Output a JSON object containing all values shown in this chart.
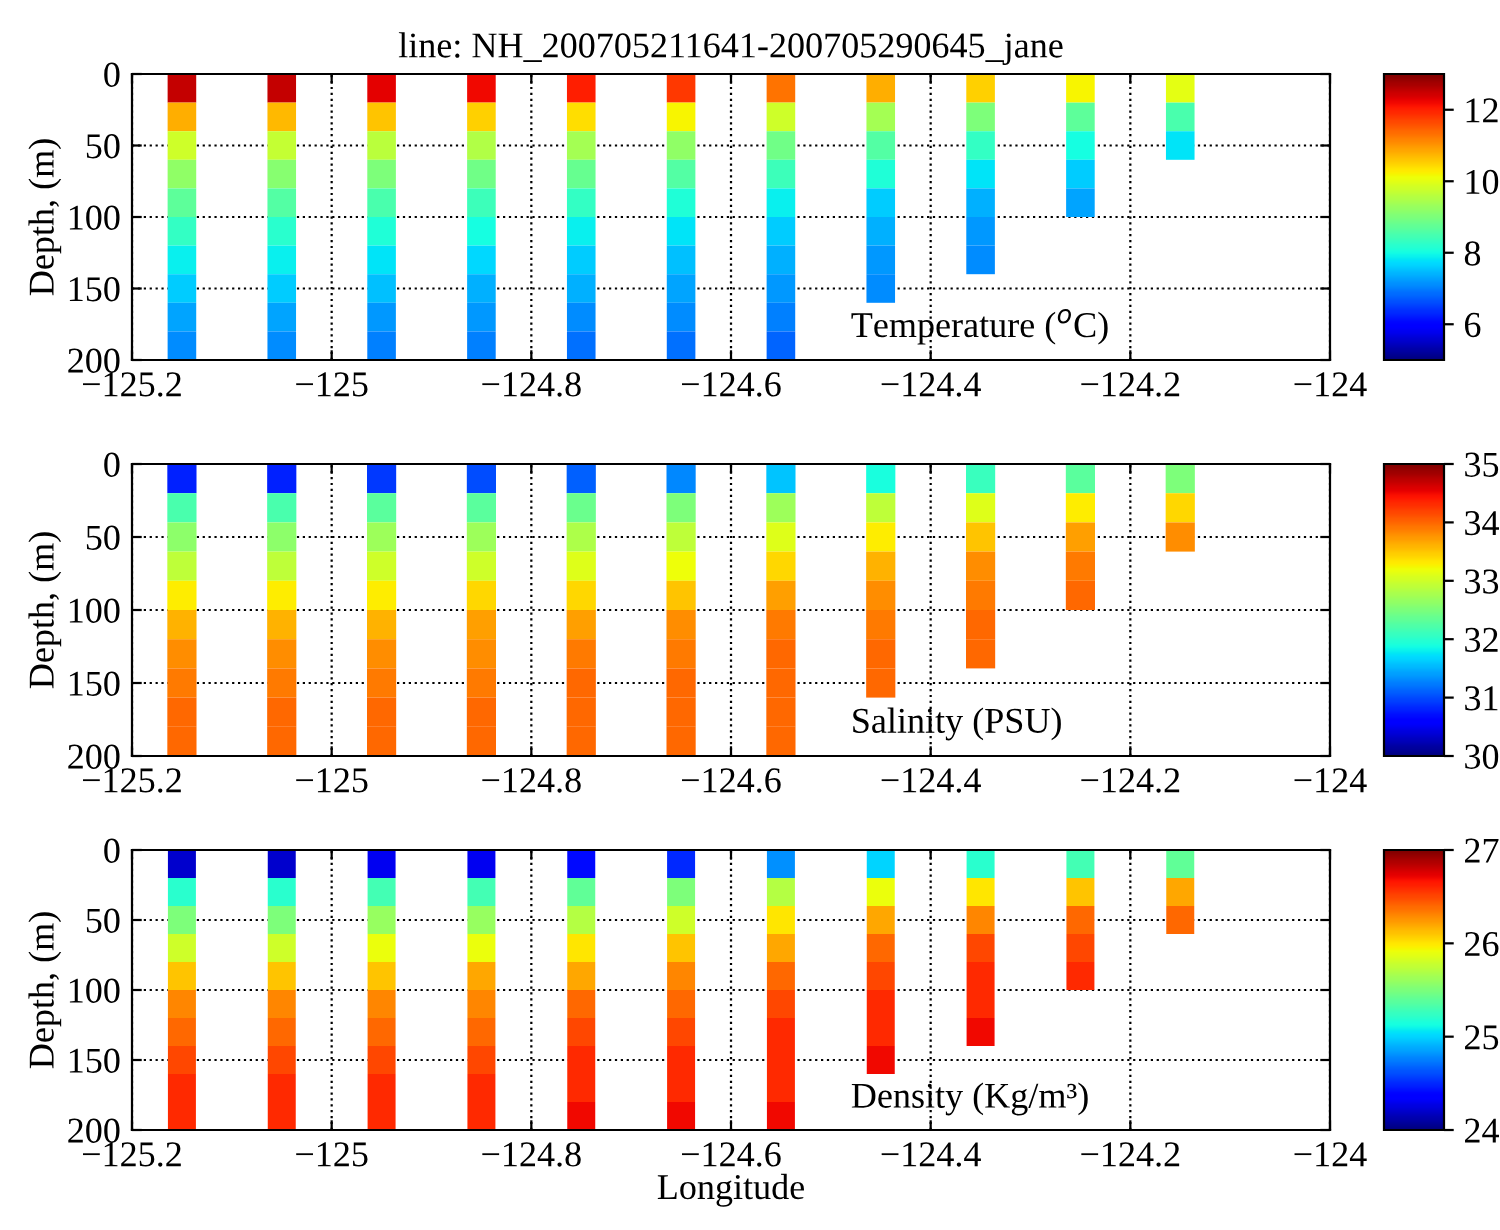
{
  "chart_data": [
    {
      "type": "scatter",
      "title": "line: NH_200705211641-200705290645_jane",
      "ylabel": "Depth, (m)",
      "annotations": [
        "Temperature ($^{o}$C)"
      ],
      "xlim": [
        -125.2,
        -124
      ],
      "xticks": [
        -125.2,
        -125,
        -124.8,
        -124.6,
        -124.4,
        -124.2,
        -124
      ],
      "ylim": [
        200,
        0
      ],
      "yticks": [
        0,
        50,
        100,
        150,
        200
      ],
      "clim": [
        5,
        13
      ],
      "cticks": [
        6,
        8,
        10,
        12
      ],
      "grid": true,
      "marker": "square",
      "x": [
        -125.15,
        -125.05,
        -124.95,
        -124.85,
        -124.75,
        -124.65,
        -124.55,
        -124.45,
        -124.35,
        -124.25,
        -124.15,
        -125.15,
        -125.05,
        -124.95,
        -124.85,
        -124.75,
        -124.65,
        -124.55,
        -124.45,
        -124.35,
        -124.25,
        -124.15,
        -125.15,
        -125.05,
        -124.95,
        -124.85,
        -124.75,
        -124.65,
        -124.55,
        -124.45,
        -124.35,
        -124.25,
        -124.15,
        -125.15,
        -125.05,
        -124.95,
        -124.85,
        -124.75,
        -124.65,
        -124.55,
        -124.45,
        -124.35,
        -124.25,
        -125.15,
        -125.05,
        -124.95,
        -124.85,
        -124.75,
        -124.65,
        -124.55,
        -124.45,
        -124.35,
        -124.25,
        -125.15,
        -125.05,
        -124.95,
        -124.85,
        -124.75,
        -124.65,
        -124.55,
        -124.45,
        -124.35,
        -125.15,
        -125.05,
        -124.95,
        -124.85,
        -124.75,
        -124.65,
        -124.55,
        -124.45,
        -124.35,
        -125.15,
        -125.05,
        -124.95,
        -124.85,
        -124.75,
        -124.65,
        -124.55,
        -124.45,
        -125.15,
        -125.05,
        -124.95,
        -124.85,
        -124.75,
        -124.65,
        -124.55,
        -125.15,
        -125.05,
        -124.95,
        -124.85,
        -124.75,
        -124.65,
        -124.55
      ],
      "values": [
        10,
        10,
        10,
        10,
        10,
        10,
        10,
        10,
        10,
        10,
        10,
        30,
        30,
        30,
        30,
        30,
        30,
        30,
        30,
        30,
        30,
        30,
        50,
        50,
        50,
        50,
        50,
        50,
        50,
        50,
        50,
        50,
        50,
        70,
        70,
        70,
        70,
        70,
        70,
        70,
        70,
        70,
        70,
        90,
        90,
        90,
        90,
        90,
        90,
        90,
        90,
        90,
        90,
        110,
        110,
        110,
        110,
        110,
        110,
        110,
        110,
        110,
        130,
        130,
        130,
        130,
        130,
        130,
        130,
        130,
        130,
        150,
        150,
        150,
        150,
        150,
        150,
        150,
        150,
        170,
        170,
        170,
        170,
        170,
        170,
        170,
        190,
        190,
        190,
        190,
        190,
        190,
        190
      ],
      "cvalues": [
        12.5,
        12.5,
        12.3,
        12.2,
        12.0,
        11.8,
        11.3,
        10.8,
        10.5,
        10.2,
        10.0,
        10.8,
        10.7,
        10.6,
        10.5,
        10.4,
        10.2,
        9.8,
        9.4,
        9.0,
        8.7,
        8.5,
        9.8,
        9.7,
        9.6,
        9.5,
        9.4,
        9.2,
        8.9,
        8.6,
        8.3,
        8.0,
        7.8,
        9.2,
        9.1,
        9.0,
        8.9,
        8.8,
        8.6,
        8.4,
        8.1,
        7.8,
        7.6,
        8.7,
        8.6,
        8.5,
        8.4,
        8.3,
        8.1,
        7.9,
        7.6,
        7.4,
        7.3,
        8.3,
        8.2,
        8.1,
        8.0,
        7.9,
        7.8,
        7.6,
        7.4,
        7.2,
        7.9,
        7.9,
        7.8,
        7.7,
        7.6,
        7.5,
        7.4,
        7.2,
        7.1,
        7.6,
        7.6,
        7.5,
        7.4,
        7.4,
        7.3,
        7.2,
        7.1,
        7.3,
        7.3,
        7.2,
        7.2,
        7.1,
        7.1,
        7.0,
        7.1,
        7.1,
        7.0,
        7.0,
        6.9,
        6.9,
        6.8
      ]
    },
    {
      "type": "scatter",
      "ylabel": "Depth, (m)",
      "annotations": [
        "Salinity (PSU)"
      ],
      "xlim": [
        -125.2,
        -124
      ],
      "xticks": [
        -125.2,
        -125,
        -124.8,
        -124.6,
        -124.4,
        -124.2,
        -124
      ],
      "ylim": [
        200,
        0
      ],
      "yticks": [
        0,
        50,
        100,
        150,
        200
      ],
      "clim": [
        30,
        35
      ],
      "cticks": [
        30,
        31,
        32,
        33,
        34,
        35
      ],
      "grid": true,
      "marker": "square",
      "x": [
        -125.15,
        -125.05,
        -124.95,
        -124.85,
        -124.75,
        -124.65,
        -124.55,
        -124.45,
        -124.35,
        -124.25,
        -124.15,
        -125.15,
        -125.05,
        -124.95,
        -124.85,
        -124.75,
        -124.65,
        -124.55,
        -124.45,
        -124.35,
        -124.25,
        -124.15,
        -125.15,
        -125.05,
        -124.95,
        -124.85,
        -124.75,
        -124.65,
        -124.55,
        -124.45,
        -124.35,
        -124.25,
        -124.15,
        -125.15,
        -125.05,
        -124.95,
        -124.85,
        -124.75,
        -124.65,
        -124.55,
        -124.45,
        -124.35,
        -124.25,
        -125.15,
        -125.05,
        -124.95,
        -124.85,
        -124.75,
        -124.65,
        -124.55,
        -124.45,
        -124.35,
        -124.25,
        -125.15,
        -125.05,
        -124.95,
        -124.85,
        -124.75,
        -124.65,
        -124.55,
        -124.45,
        -124.35,
        -125.15,
        -125.05,
        -124.95,
        -124.85,
        -124.75,
        -124.65,
        -124.55,
        -124.45,
        -124.35,
        -125.15,
        -125.05,
        -124.95,
        -124.85,
        -124.75,
        -124.65,
        -124.55,
        -124.45,
        -125.15,
        -125.05,
        -124.95,
        -124.85,
        -124.75,
        -124.65,
        -124.55,
        -125.15,
        -125.05,
        -124.95,
        -124.85,
        -124.75,
        -124.65,
        -124.55
      ],
      "values": [
        10,
        10,
        10,
        10,
        10,
        10,
        10,
        10,
        10,
        10,
        10,
        30,
        30,
        30,
        30,
        30,
        30,
        30,
        30,
        30,
        30,
        30,
        50,
        50,
        50,
        50,
        50,
        50,
        50,
        50,
        50,
        50,
        50,
        70,
        70,
        70,
        70,
        70,
        70,
        70,
        70,
        70,
        70,
        90,
        90,
        90,
        90,
        90,
        90,
        90,
        90,
        90,
        90,
        110,
        110,
        110,
        110,
        110,
        110,
        110,
        110,
        110,
        130,
        130,
        130,
        130,
        130,
        130,
        130,
        130,
        130,
        150,
        150,
        150,
        150,
        150,
        150,
        150,
        150,
        170,
        170,
        170,
        170,
        170,
        170,
        170,
        190,
        190,
        190,
        190,
        190,
        190,
        190
      ],
      "cvalues": [
        30.8,
        30.8,
        30.9,
        31.0,
        31.1,
        31.3,
        31.6,
        31.9,
        32.1,
        32.3,
        32.5,
        32.2,
        32.2,
        32.3,
        32.3,
        32.4,
        32.5,
        32.7,
        32.9,
        33.1,
        33.3,
        33.4,
        32.6,
        32.6,
        32.7,
        32.7,
        32.8,
        32.9,
        33.1,
        33.3,
        33.5,
        33.7,
        33.8,
        32.9,
        32.9,
        33.0,
        33.0,
        33.1,
        33.2,
        33.4,
        33.6,
        33.8,
        33.9,
        33.3,
        33.3,
        33.3,
        33.4,
        33.4,
        33.5,
        33.7,
        33.8,
        33.9,
        34.0,
        33.6,
        33.6,
        33.6,
        33.7,
        33.7,
        33.8,
        33.9,
        33.9,
        34.0,
        33.8,
        33.8,
        33.8,
        33.8,
        33.9,
        33.9,
        34.0,
        34.0,
        34.0,
        33.9,
        33.9,
        33.9,
        33.9,
        34.0,
        34.0,
        34.0,
        34.0,
        34.0,
        34.0,
        34.0,
        34.0,
        34.0,
        34.0,
        34.0,
        34.0,
        34.0,
        34.0,
        34.0,
        34.0,
        34.0,
        34.0
      ]
    },
    {
      "type": "scatter",
      "ylabel": "Depth, (m)",
      "xlabel": "Longitude",
      "annotations": [
        "Density (Kg/m³)"
      ],
      "xlim": [
        -125.2,
        -124
      ],
      "xticks": [
        -125.2,
        -125,
        -124.8,
        -124.6,
        -124.4,
        -124.2,
        -124
      ],
      "ylim": [
        200,
        0
      ],
      "yticks": [
        0,
        50,
        100,
        150,
        200
      ],
      "clim": [
        24,
        27
      ],
      "cticks": [
        24,
        25,
        26,
        27
      ],
      "grid": true,
      "marker": "square",
      "x": [
        -125.15,
        -125.05,
        -124.95,
        -124.85,
        -124.75,
        -124.65,
        -124.55,
        -124.45,
        -124.35,
        -124.25,
        -124.15,
        -125.15,
        -125.05,
        -124.95,
        -124.85,
        -124.75,
        -124.65,
        -124.55,
        -124.45,
        -124.35,
        -124.25,
        -124.15,
        -125.15,
        -125.05,
        -124.95,
        -124.85,
        -124.75,
        -124.65,
        -124.55,
        -124.45,
        -124.35,
        -124.25,
        -124.15,
        -125.15,
        -125.05,
        -124.95,
        -124.85,
        -124.75,
        -124.65,
        -124.55,
        -124.45,
        -124.35,
        -124.25,
        -125.15,
        -125.05,
        -124.95,
        -124.85,
        -124.75,
        -124.65,
        -124.55,
        -124.45,
        -124.35,
        -124.25,
        -125.15,
        -125.05,
        -124.95,
        -124.85,
        -124.75,
        -124.65,
        -124.55,
        -124.45,
        -124.35,
        -125.15,
        -125.05,
        -124.95,
        -124.85,
        -124.75,
        -124.65,
        -124.55,
        -124.45,
        -124.35,
        -125.15,
        -125.05,
        -124.95,
        -124.85,
        -124.75,
        -124.65,
        -124.55,
        -124.45,
        -125.15,
        -125.05,
        -124.95,
        -124.85,
        -124.75,
        -124.65,
        -124.55,
        -125.15,
        -125.05,
        -124.95,
        -124.85,
        -124.75,
        -124.65,
        -124.55
      ],
      "values": [
        10,
        10,
        10,
        10,
        10,
        10,
        10,
        10,
        10,
        10,
        10,
        30,
        30,
        30,
        30,
        30,
        30,
        30,
        30,
        30,
        30,
        30,
        50,
        50,
        50,
        50,
        50,
        50,
        50,
        50,
        50,
        50,
        50,
        70,
        70,
        70,
        70,
        70,
        70,
        70,
        70,
        70,
        70,
        90,
        90,
        90,
        90,
        90,
        90,
        90,
        90,
        90,
        90,
        110,
        110,
        110,
        110,
        110,
        110,
        110,
        110,
        110,
        130,
        130,
        130,
        130,
        130,
        130,
        130,
        130,
        130,
        150,
        150,
        150,
        150,
        150,
        150,
        150,
        150,
        170,
        170,
        170,
        170,
        170,
        170,
        170,
        190,
        190,
        190,
        190,
        190,
        190,
        190
      ],
      "cvalues": [
        24.2,
        24.2,
        24.3,
        24.3,
        24.4,
        24.5,
        24.8,
        25.0,
        25.2,
        25.3,
        25.4,
        25.2,
        25.2,
        25.3,
        25.3,
        25.4,
        25.5,
        25.7,
        25.9,
        26.0,
        26.1,
        26.2,
        25.5,
        25.5,
        25.6,
        25.6,
        25.7,
        25.8,
        26.0,
        26.2,
        26.3,
        26.4,
        26.4,
        25.8,
        25.8,
        25.9,
        25.9,
        26.0,
        26.1,
        26.2,
        26.4,
        26.5,
        26.5,
        26.1,
        26.1,
        26.1,
        26.2,
        26.2,
        26.3,
        26.4,
        26.5,
        26.6,
        26.6,
        26.3,
        26.3,
        26.3,
        26.3,
        26.4,
        26.4,
        26.5,
        26.6,
        26.6,
        26.4,
        26.4,
        26.4,
        26.4,
        26.5,
        26.5,
        26.6,
        26.6,
        26.7,
        26.5,
        26.5,
        26.5,
        26.5,
        26.6,
        26.6,
        26.6,
        26.7,
        26.6,
        26.6,
        26.6,
        26.6,
        26.6,
        26.6,
        26.6,
        26.6,
        26.6,
        26.6,
        26.6,
        26.7,
        26.7,
        26.7
      ]
    }
  ]
}
